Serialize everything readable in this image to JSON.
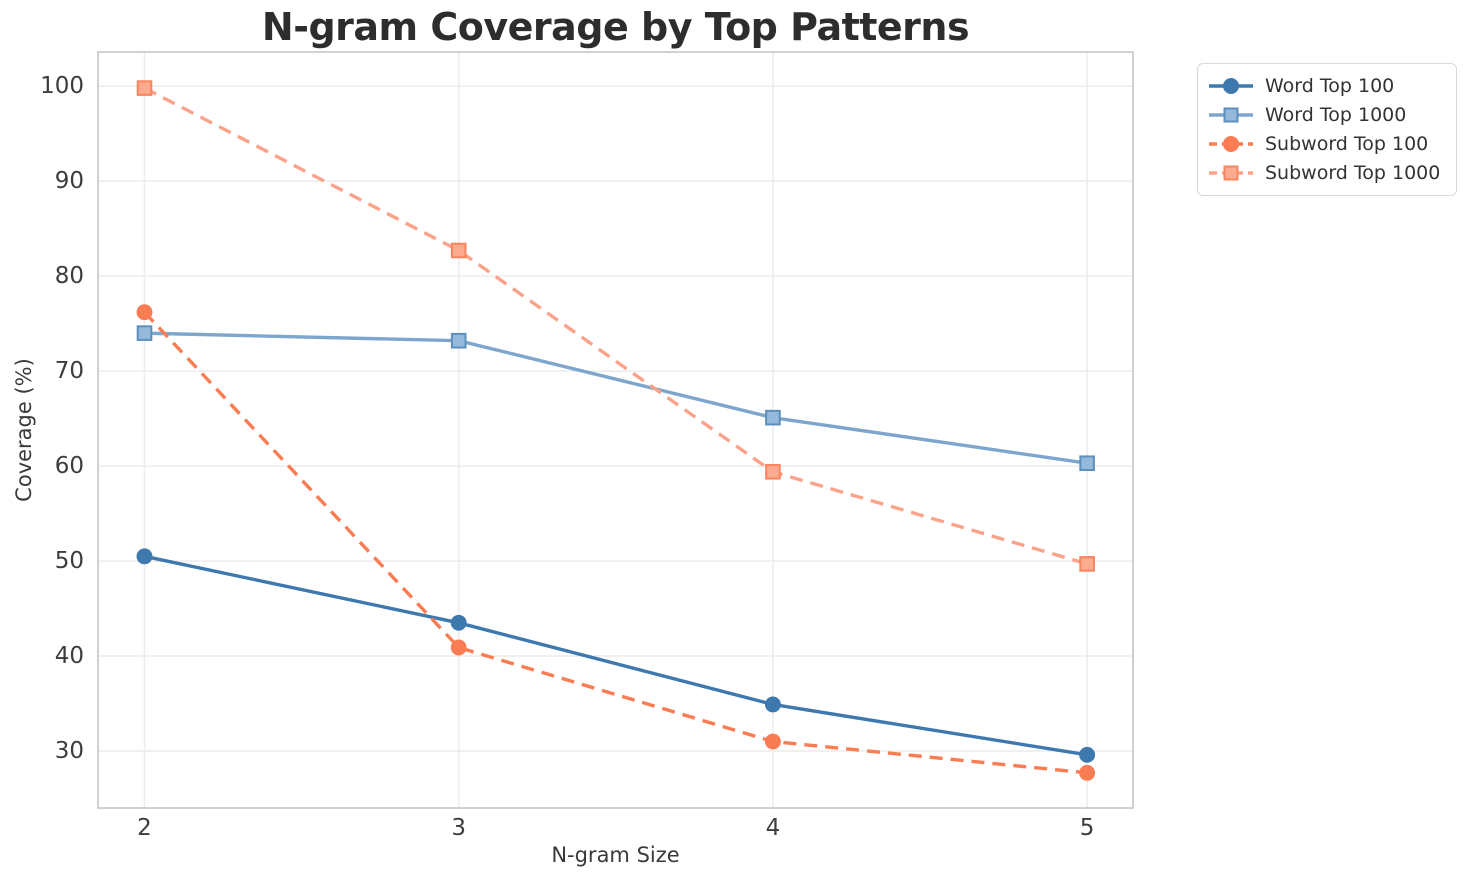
{
  "chart_data": {
    "type": "line",
    "title": "N-gram Coverage by Top Patterns",
    "xlabel": "N-gram Size",
    "ylabel": "Coverage (%)",
    "x": [
      2,
      3,
      4,
      5
    ],
    "xticks": [
      2,
      3,
      4,
      5
    ],
    "yticks": [
      30,
      40,
      50,
      60,
      70,
      80,
      90,
      100
    ],
    "xlim": [
      1.852,
      5.146
    ],
    "ylim": [
      24.0,
      103.6
    ],
    "grid": true,
    "legend_position": "outside-top-right",
    "series": [
      {
        "name": "Word Top 100",
        "values": [
          50.5,
          43.5,
          34.9,
          29.6
        ],
        "color": "#3d78ae",
        "style": "solid",
        "marker": "circle"
      },
      {
        "name": "Word Top 1000",
        "values": [
          74.0,
          73.2,
          65.1,
          60.3
        ],
        "color": "#7ea6cd",
        "marker_fill": "#94b9db",
        "marker_edge": "#5d8fbd",
        "style": "solid",
        "marker": "square"
      },
      {
        "name": "Subword Top 100",
        "values": [
          76.2,
          40.9,
          31.0,
          27.7
        ],
        "color": "#f97c53",
        "style": "dashed",
        "marker": "circle"
      },
      {
        "name": "Subword Top 1000",
        "values": [
          99.8,
          82.7,
          59.4,
          49.7
        ],
        "color": "#fba38a",
        "marker_fill": "#fcab8f",
        "marker_edge": "#f9855e",
        "style": "dashed",
        "marker": "square"
      }
    ],
    "colors": {
      "grid": "#ececec",
      "spine": "#cccccc",
      "title_text": "#2d2d2d",
      "axis_text": "#3a3a3a",
      "tick_text": "#3d3d3d",
      "legend_text": "#333333",
      "background": "#ffffff"
    }
  }
}
